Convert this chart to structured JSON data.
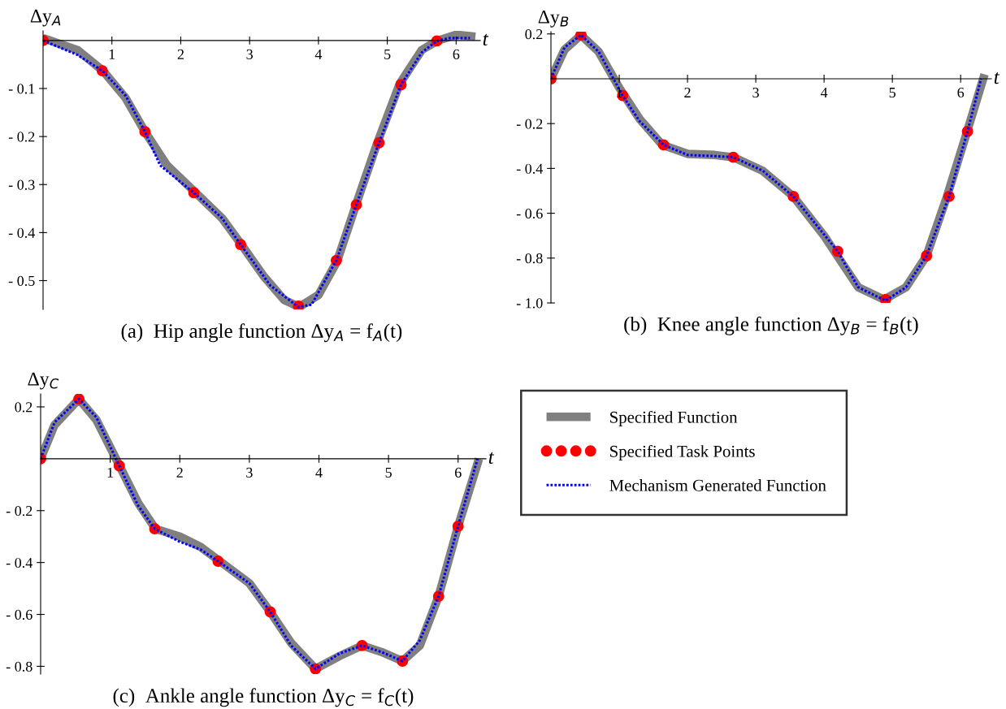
{
  "chart_data": [
    {
      "type": "line",
      "xlabel": "t",
      "ylabel": "Δy$_{A}$",
      "annotations": [
        "(a)  Hip angle function Δy$_{A}$ = f$_{A}$(t)"
      ],
      "xlim": [
        0,
        6.35
      ],
      "ylim": [
        -0.56,
        0.02
      ],
      "xticks": [
        1,
        2,
        3,
        4,
        5,
        6
      ],
      "yticks": [
        {
          "value": -0.1,
          "label": "- 0.1"
        },
        {
          "value": -0.2,
          "label": "- 0.2"
        },
        {
          "value": -0.3,
          "label": "- 0.3"
        },
        {
          "value": -0.4,
          "label": "- 0.4"
        },
        {
          "value": -0.5,
          "label": "- 0.5"
        }
      ],
      "grid": false,
      "legend": false,
      "series": [
        {
          "color": "#808080",
          "line_style": "solid",
          "x": [
            0,
            0.5,
            0.87,
            1.2,
            1.48,
            1.8,
            2.2,
            2.6,
            2.88,
            3.2,
            3.5,
            3.72,
            4.0,
            4.27,
            4.55,
            4.85,
            5.18,
            5.5,
            5.72,
            6.0,
            6.28
          ],
          "values": [
            0.005,
            -0.02,
            -0.063,
            -0.12,
            -0.19,
            -0.26,
            -0.315,
            -0.37,
            -0.425,
            -0.49,
            -0.54,
            -0.555,
            -0.53,
            -0.46,
            -0.34,
            -0.215,
            -0.09,
            -0.02,
            -0.001,
            0.012,
            0.008
          ]
        },
        {
          "type": "scatter",
          "color": "#ff0000",
          "marker": "circle",
          "x": [
            0,
            0.86,
            1.48,
            2.19,
            2.87,
            3.71,
            4.26,
            4.55,
            4.88,
            5.2,
            5.72
          ],
          "values": [
            0,
            -0.063,
            -0.19,
            -0.317,
            -0.425,
            -0.553,
            -0.458,
            -0.342,
            -0.213,
            -0.092,
            -0.001
          ]
        },
        {
          "color": "#0000ff",
          "line_style": "dotted",
          "x": [
            0,
            0.5,
            0.86,
            1.2,
            1.48,
            1.7,
            2.0,
            2.19,
            2.6,
            2.87,
            3.3,
            3.71,
            3.9,
            4.26,
            4.55,
            4.88,
            5.2,
            5.5,
            5.72,
            5.9,
            6.2
          ],
          "values": [
            0,
            -0.03,
            -0.063,
            -0.115,
            -0.19,
            -0.26,
            -0.295,
            -0.317,
            -0.37,
            -0.425,
            -0.51,
            -0.555,
            -0.55,
            -0.458,
            -0.342,
            -0.213,
            -0.092,
            -0.025,
            -0.001,
            0.005,
            0.005
          ]
        }
      ]
    },
    {
      "type": "line",
      "xlabel": "t",
      "ylabel": "Δy$_{B}$",
      "annotations": [
        "(b)  Knee angle function Δy$_{B}$ = f$_{B}$(t)"
      ],
      "xlim": [
        0,
        6.45
      ],
      "ylim": [
        -1.0,
        0.21
      ],
      "xticks": [
        1,
        2,
        3,
        4,
        5,
        6
      ],
      "yticks": [
        0.2,
        {
          "value": -0.2,
          "label": "- 0.2"
        },
        {
          "value": -0.4,
          "label": "- 0.4"
        },
        {
          "value": -0.6,
          "label": "- 0.6"
        },
        {
          "value": -0.8,
          "label": "- 0.8"
        },
        {
          "value": -1.0,
          "label": "- 1.0"
        }
      ],
      "grid": false,
      "legend": false,
      "series": [
        {
          "color": "#808080",
          "line_style": "solid",
          "x": [
            0,
            0.2,
            0.44,
            0.7,
            1.0,
            1.3,
            1.63,
            2.0,
            2.4,
            2.67,
            3.1,
            3.55,
            4.0,
            4.15,
            4.5,
            4.88,
            5.2,
            5.5,
            5.8,
            6.1,
            6.35
          ],
          "values": [
            0,
            0.13,
            0.195,
            0.12,
            -0.04,
            -0.18,
            -0.295,
            -0.335,
            -0.34,
            -0.35,
            -0.41,
            -0.525,
            -0.7,
            -0.77,
            -0.93,
            -0.985,
            -0.93,
            -0.79,
            -0.525,
            -0.23,
            0.02
          ]
        },
        {
          "type": "scatter",
          "color": "#ff0000",
          "marker": "circle",
          "x": [
            0,
            0.44,
            1.05,
            1.65,
            2.67,
            3.55,
            4.2,
            4.9,
            5.5,
            5.83,
            6.1
          ],
          "values": [
            0,
            0.195,
            -0.075,
            -0.295,
            -0.35,
            -0.525,
            -0.77,
            -0.985,
            -0.79,
            -0.525,
            -0.235
          ]
        },
        {
          "color": "#0000ff",
          "line_style": "dotted",
          "x": [
            0,
            0.2,
            0.44,
            0.7,
            1.05,
            1.3,
            1.65,
            2.0,
            2.4,
            2.67,
            3.1,
            3.55,
            4.2,
            4.5,
            4.9,
            5.2,
            5.5,
            5.83,
            6.1,
            6.3
          ],
          "values": [
            0,
            0.14,
            0.195,
            0.12,
            -0.075,
            -0.19,
            -0.295,
            -0.34,
            -0.345,
            -0.35,
            -0.41,
            -0.525,
            -0.77,
            -0.93,
            -0.99,
            -0.93,
            -0.79,
            -0.525,
            -0.235,
            0.0
          ]
        }
      ]
    },
    {
      "type": "line",
      "xlabel": "t",
      "ylabel": "Δy$_{C}$",
      "annotations": [
        "(c)  Ankle angle function Δy$_{C}$ = f$_{C}$(t)"
      ],
      "xlim": [
        0,
        6.4
      ],
      "ylim": [
        -0.83,
        0.25
      ],
      "xticks": [
        1,
        2,
        3,
        4,
        5,
        6
      ],
      "yticks": [
        0.2,
        {
          "value": -0.2,
          "label": "- 0.2"
        },
        {
          "value": -0.4,
          "label": "- 0.4"
        },
        {
          "value": -0.6,
          "label": "- 0.6"
        },
        {
          "value": -0.8,
          "label": "- 0.8"
        }
      ],
      "grid": false,
      "legend": "right",
      "series": [
        {
          "name": "Specified Function",
          "color": "#808080",
          "line_style": "solid",
          "x": [
            0,
            0.2,
            0.55,
            0.8,
            1.13,
            1.4,
            1.65,
            2.0,
            2.3,
            2.55,
            3.0,
            3.3,
            3.6,
            3.95,
            4.3,
            4.62,
            4.9,
            5.2,
            5.45,
            5.72,
            6.0,
            6.3
          ],
          "values": [
            0,
            0.13,
            0.23,
            0.15,
            -0.025,
            -0.17,
            -0.27,
            -0.3,
            -0.34,
            -0.39,
            -0.48,
            -0.59,
            -0.71,
            -0.81,
            -0.76,
            -0.72,
            -0.745,
            -0.78,
            -0.72,
            -0.53,
            -0.26,
            0.0
          ]
        },
        {
          "type": "scatter",
          "name": "Specified Task Points",
          "color": "#ff0000",
          "marker": "circle",
          "x": [
            0,
            0.55,
            1.13,
            1.64,
            2.55,
            3.3,
            3.95,
            4.62,
            5.2,
            5.72,
            6.0
          ],
          "values": [
            0,
            0.23,
            -0.027,
            -0.27,
            -0.395,
            -0.59,
            -0.81,
            -0.72,
            -0.78,
            -0.53,
            -0.26
          ]
        },
        {
          "name": "Mechanism Generated Function",
          "color": "#0000ff",
          "line_style": "dotted",
          "x": [
            0,
            0.2,
            0.55,
            0.8,
            1.13,
            1.4,
            1.64,
            2.0,
            2.3,
            2.55,
            3.0,
            3.3,
            3.6,
            3.95,
            4.3,
            4.62,
            4.9,
            5.2,
            5.45,
            5.72,
            6.0,
            6.28
          ],
          "values": [
            0,
            0.14,
            0.23,
            0.16,
            -0.027,
            -0.18,
            -0.27,
            -0.32,
            -0.35,
            -0.395,
            -0.48,
            -0.59,
            -0.72,
            -0.81,
            -0.75,
            -0.72,
            -0.745,
            -0.78,
            -0.7,
            -0.53,
            -0.26,
            0.0
          ]
        }
      ]
    }
  ]
}
